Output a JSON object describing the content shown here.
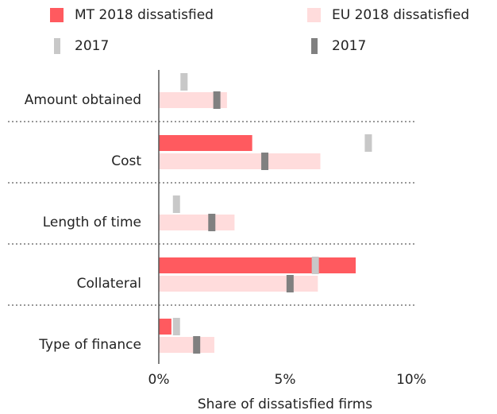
{
  "chart_data": {
    "type": "bar",
    "xlabel": "Share of dissatisfied firms",
    "categories": [
      "Amount obtained",
      "Cost",
      "Length of time",
      "Collateral",
      "Type of finance"
    ],
    "series": [
      {
        "name": "MT 2018 dissatisfied",
        "color": "#ff5a5f",
        "style": "bar",
        "row": 0,
        "values": [
          null,
          3.7,
          null,
          7.8,
          0.5
        ]
      },
      {
        "name": "EU 2018 dissatisfied",
        "color": "#ffdcdc",
        "style": "bar",
        "row": 1,
        "values": [
          2.7,
          6.4,
          3.0,
          6.3,
          2.2
        ]
      },
      {
        "name": "2017",
        "color": "#c8c8c8",
        "style": "marker",
        "row": 0,
        "values": [
          1.0,
          8.3,
          0.7,
          6.2,
          0.7
        ]
      },
      {
        "name": "2017",
        "color": "#808080",
        "style": "marker",
        "row": 1,
        "values": [
          2.3,
          4.2,
          2.1,
          5.2,
          1.5
        ]
      }
    ],
    "xlim": [
      0,
      10
    ],
    "xticks": [
      {
        "value": 0,
        "label": "0%"
      },
      {
        "value": 5,
        "label": "5%"
      },
      {
        "value": 10,
        "label": "10%"
      }
    ]
  }
}
